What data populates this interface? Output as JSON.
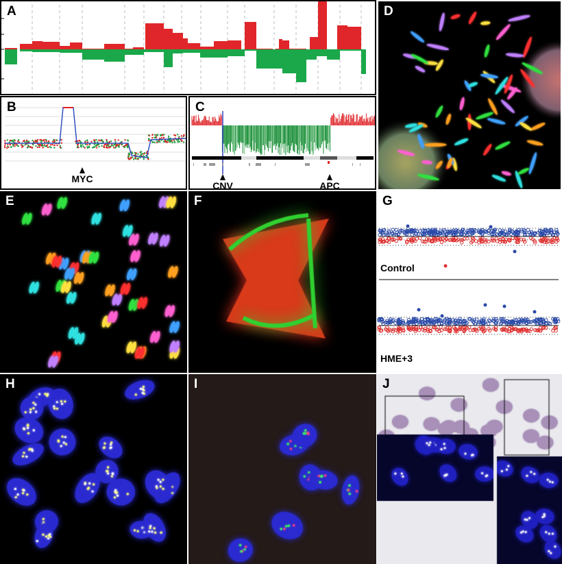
{
  "panels": {
    "A": {
      "label": "A"
    },
    "B": {
      "label": "B",
      "marker": "MYC"
    },
    "C": {
      "label": "C",
      "markers": [
        "CNV",
        "APC"
      ]
    },
    "D": {
      "label": "D"
    },
    "E": {
      "label": "E"
    },
    "F": {
      "label": "F"
    },
    "G": {
      "label": "G",
      "groups": [
        "Control",
        "HME+3"
      ]
    },
    "H": {
      "label": "H"
    },
    "I": {
      "label": "I"
    },
    "J": {
      "label": "J"
    }
  },
  "colors": {
    "gain": "#e0262a",
    "loss": "#1aa84a",
    "probe_blue": "#2a4aa8",
    "probe_red": "#e03030",
    "nuclei": "#2a2ad0"
  }
}
